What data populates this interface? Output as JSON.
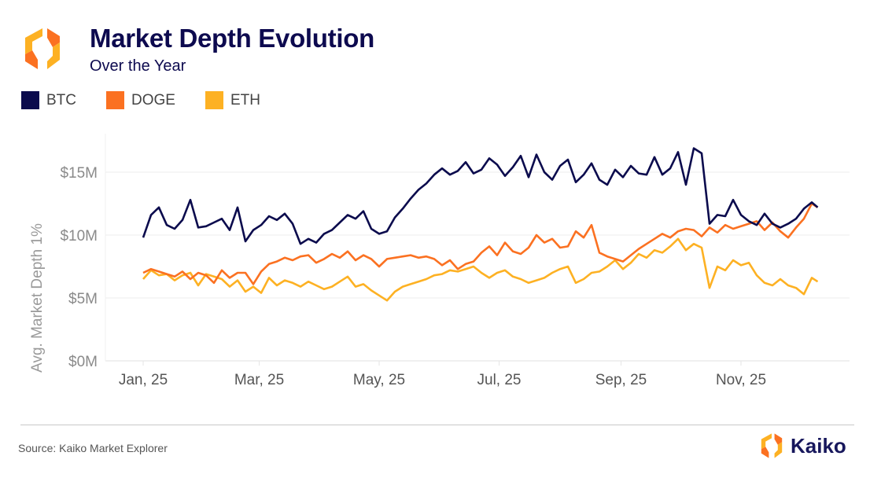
{
  "header": {
    "title": "Market Depth Evolution",
    "subtitle": "Over the Year",
    "logo_icon": "kaiko-hexagon-logo-icon"
  },
  "footer": {
    "source": "Source: Kaiko Market Explorer",
    "brand": "Kaiko",
    "brand_icon": "kaiko-hexagon-logo-icon"
  },
  "colors": {
    "BTC": "#0b0b4d",
    "DOGE": "#fb7121",
    "ETH": "#fdb123",
    "title": "#0d0a4f",
    "grid": "#ececec"
  },
  "chart_data": {
    "type": "line",
    "title": "Market Depth Evolution",
    "subtitle": "Over the Year",
    "xlabel": "",
    "ylabel": "Avg. Market Depth 1%",
    "ylim": [
      0,
      17.5
    ],
    "yticks": [
      0,
      5,
      10,
      15
    ],
    "ytick_labels": [
      "$0M",
      "$5M",
      "$10M",
      "$15M"
    ],
    "y_unit": "USD millions",
    "xlim_day_of_year": [
      -18,
      360
    ],
    "xticks_day_of_year": [
      0,
      59,
      120,
      181,
      243,
      304
    ],
    "xtick_labels": [
      "Jan, 25",
      "Mar, 25",
      "May, 25",
      "Jul, 25",
      "Sep, 25",
      "Nov, 25"
    ],
    "grid": true,
    "legend": "top-left",
    "x": [
      0,
      4,
      8,
      12,
      16,
      20,
      24,
      28,
      32,
      36,
      40,
      44,
      48,
      52,
      56,
      60,
      64,
      68,
      72,
      76,
      80,
      84,
      88,
      92,
      96,
      100,
      104,
      108,
      112,
      116,
      120,
      124,
      128,
      132,
      136,
      140,
      144,
      148,
      152,
      156,
      160,
      164,
      168,
      172,
      176,
      180,
      184,
      188,
      192,
      196,
      200,
      204,
      208,
      212,
      216,
      220,
      224,
      228,
      232,
      236,
      240,
      244,
      248,
      252,
      256,
      260,
      264,
      268,
      272,
      276,
      280,
      284,
      288,
      292,
      296,
      300,
      304,
      308,
      312,
      316,
      320,
      324,
      328,
      332,
      336,
      340,
      343
    ],
    "series": [
      {
        "name": "BTC",
        "values": [
          9.8,
          11.6,
          12.2,
          10.8,
          10.5,
          11.2,
          12.8,
          10.6,
          10.7,
          11.0,
          11.3,
          10.4,
          12.2,
          9.5,
          10.4,
          10.8,
          11.5,
          11.2,
          11.7,
          10.9,
          9.3,
          9.7,
          9.4,
          10.1,
          10.4,
          11.0,
          11.6,
          11.3,
          11.9,
          10.5,
          10.1,
          10.3,
          11.4,
          12.1,
          12.9,
          13.6,
          14.1,
          14.8,
          15.3,
          14.8,
          15.1,
          15.8,
          14.9,
          15.2,
          16.1,
          15.6,
          14.7,
          15.4,
          16.3,
          14.6,
          16.4,
          15.0,
          14.4,
          15.5,
          16.0,
          14.2,
          14.8,
          15.7,
          14.4,
          14.0,
          15.2,
          14.6,
          15.5,
          14.9,
          14.8,
          16.2,
          14.8,
          15.3,
          16.6,
          14.0,
          16.9,
          16.5,
          10.9,
          11.6,
          11.5,
          12.8,
          11.6,
          11.1,
          10.8,
          11.7,
          10.9,
          10.6,
          10.9,
          11.3,
          12.1,
          12.6,
          12.2
        ],
        "color": "#0b0b4d"
      },
      {
        "name": "DOGE",
        "values": [
          7.0,
          7.3,
          7.1,
          6.9,
          6.7,
          7.1,
          6.5,
          7.0,
          6.8,
          6.2,
          7.2,
          6.6,
          7.0,
          7.0,
          6.1,
          7.1,
          7.7,
          7.9,
          8.2,
          8.0,
          8.3,
          8.4,
          7.8,
          8.1,
          8.5,
          8.2,
          8.7,
          8.0,
          8.4,
          8.1,
          7.5,
          8.1,
          8.2,
          8.3,
          8.4,
          8.2,
          8.3,
          8.1,
          7.6,
          8.0,
          7.3,
          7.7,
          7.9,
          8.6,
          9.1,
          8.4,
          9.4,
          8.7,
          8.5,
          9.0,
          10.0,
          9.4,
          9.7,
          9.0,
          9.1,
          10.3,
          9.8,
          10.8,
          8.6,
          8.3,
          8.1,
          7.9,
          8.4,
          8.9,
          9.3,
          9.7,
          10.1,
          9.8,
          10.3,
          10.5,
          10.4,
          9.9,
          10.6,
          10.2,
          10.8,
          10.5,
          10.7,
          10.9,
          11.1,
          10.4,
          11.0,
          10.3,
          9.8,
          10.6,
          11.3,
          12.5,
          12.2
        ],
        "color": "#fb7121"
      },
      {
        "name": "ETH",
        "values": [
          6.5,
          7.2,
          6.8,
          6.9,
          6.4,
          6.8,
          7.0,
          6.0,
          6.9,
          6.7,
          6.5,
          5.9,
          6.4,
          5.5,
          5.9,
          5.4,
          6.6,
          6.0,
          6.4,
          6.2,
          5.9,
          6.3,
          6.0,
          5.7,
          5.9,
          6.3,
          6.7,
          5.9,
          6.1,
          5.6,
          5.2,
          4.8,
          5.5,
          5.9,
          6.1,
          6.3,
          6.5,
          6.8,
          6.9,
          7.2,
          7.1,
          7.3,
          7.5,
          7.0,
          6.6,
          7.0,
          7.2,
          6.7,
          6.5,
          6.2,
          6.4,
          6.6,
          7.0,
          7.3,
          7.5,
          6.2,
          6.5,
          7.0,
          7.1,
          7.5,
          8.0,
          7.3,
          7.8,
          8.5,
          8.2,
          8.8,
          8.6,
          9.1,
          9.7,
          8.8,
          9.3,
          9.0,
          5.8,
          7.5,
          7.2,
          8.0,
          7.6,
          7.8,
          6.8,
          6.2,
          6.0,
          6.5,
          6.0,
          5.8,
          5.3,
          6.6,
          6.3
        ],
        "color": "#fdb123"
      }
    ]
  }
}
